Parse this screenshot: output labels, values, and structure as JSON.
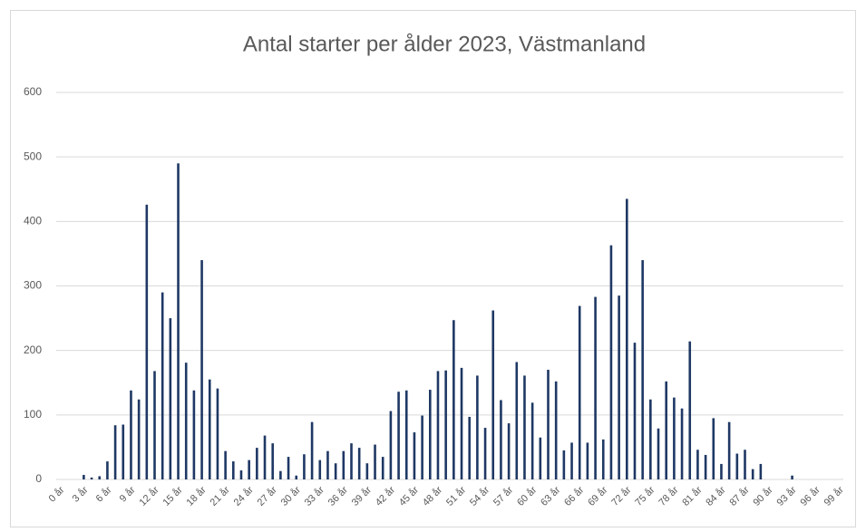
{
  "chart_data": {
    "type": "bar",
    "title": "Antal starter per ålder 2023, Västmanland",
    "categories": [
      "0 år",
      null,
      null,
      "3 år",
      null,
      null,
      "6 år",
      null,
      null,
      "9 år",
      null,
      null,
      "12 år",
      null,
      null,
      "15 år",
      null,
      null,
      "18 år",
      null,
      null,
      "21 år",
      null,
      null,
      "24 år",
      null,
      null,
      "27 år",
      null,
      null,
      "30 år",
      null,
      null,
      "33 år",
      null,
      null,
      "36 år",
      null,
      null,
      "39 år",
      null,
      null,
      "42 år",
      null,
      null,
      "45 år",
      null,
      null,
      "48 år",
      null,
      null,
      "51 år",
      null,
      null,
      "54 år",
      null,
      null,
      "57 år",
      null,
      null,
      "60 år",
      null,
      null,
      "63 år",
      null,
      null,
      "66 år",
      null,
      null,
      "69 år",
      null,
      null,
      "72 år",
      null,
      null,
      "75 år",
      null,
      null,
      "78 år",
      null,
      null,
      "81 år",
      null,
      null,
      "84 år",
      null,
      null,
      "87 år",
      null,
      null,
      "90 år",
      null,
      null,
      "93 år",
      null,
      null,
      "96 år",
      null,
      null,
      "99 år"
    ],
    "values": [
      0,
      0,
      0,
      7,
      3,
      5,
      28,
      84,
      85,
      138,
      124,
      426,
      168,
      290,
      250,
      490,
      181,
      138,
      340,
      155,
      141,
      44,
      28,
      14,
      30,
      49,
      68,
      56,
      13,
      35,
      6,
      39,
      89,
      30,
      44,
      25,
      44,
      56,
      49,
      25,
      54,
      35,
      106,
      136,
      138,
      73,
      99,
      139,
      168,
      169,
      247,
      173,
      97,
      161,
      80,
      262,
      123,
      87,
      182,
      161,
      119,
      65,
      170,
      152,
      45,
      57,
      269,
      57,
      283,
      62,
      363,
      285,
      435,
      212,
      340,
      124,
      79,
      152,
      127,
      110,
      214,
      46,
      38,
      95,
      24,
      89,
      40,
      46,
      16,
      24,
      0,
      0,
      0,
      6,
      0,
      0,
      0,
      0,
      0,
      0
    ],
    "color": "#1f3864",
    "ylim": [
      0,
      600
    ],
    "yticks": [
      0,
      100,
      200,
      300,
      400,
      500,
      600
    ],
    "grid": true
  }
}
